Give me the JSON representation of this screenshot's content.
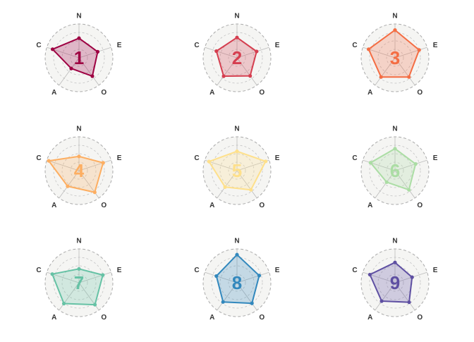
{
  "chart_data": {
    "type": "radar",
    "axes": [
      "N",
      "E",
      "O",
      "A",
      "C"
    ],
    "rlim": [
      0,
      1
    ],
    "rings": [
      0.25,
      0.5,
      0.75
    ],
    "grid": true,
    "legend": "none",
    "panels": [
      {
        "label": "1",
        "color": "#9e0142",
        "values": [
          0.58,
          0.58,
          0.67,
          0.39,
          0.82
        ]
      },
      {
        "label": "2",
        "color": "#d53e4f",
        "values": [
          0.6,
          0.61,
          0.66,
          0.67,
          0.64
        ]
      },
      {
        "label": "3",
        "color": "#f46d43",
        "values": [
          0.82,
          0.75,
          0.7,
          0.7,
          0.82
        ]
      },
      {
        "label": "4",
        "color": "#fdae61",
        "values": [
          0.42,
          0.75,
          0.79,
          0.57,
          0.94
        ]
      },
      {
        "label": "5",
        "color": "#fee08b",
        "values": [
          0.57,
          0.89,
          0.7,
          0.6,
          0.87
        ]
      },
      {
        "label": "6",
        "color": "#abdda4",
        "values": [
          0.65,
          0.64,
          0.7,
          0.42,
          0.76
        ]
      },
      {
        "label": "7",
        "color": "#66c2a5",
        "values": [
          0.41,
          0.74,
          0.8,
          0.76,
          0.83
        ]
      },
      {
        "label": "8",
        "color": "#3288bd",
        "values": [
          0.83,
          0.69,
          0.75,
          0.7,
          0.64
        ]
      },
      {
        "label": "9",
        "color": "#5e4fa2",
        "values": [
          0.6,
          0.53,
          0.71,
          0.67,
          0.78
        ]
      }
    ]
  }
}
